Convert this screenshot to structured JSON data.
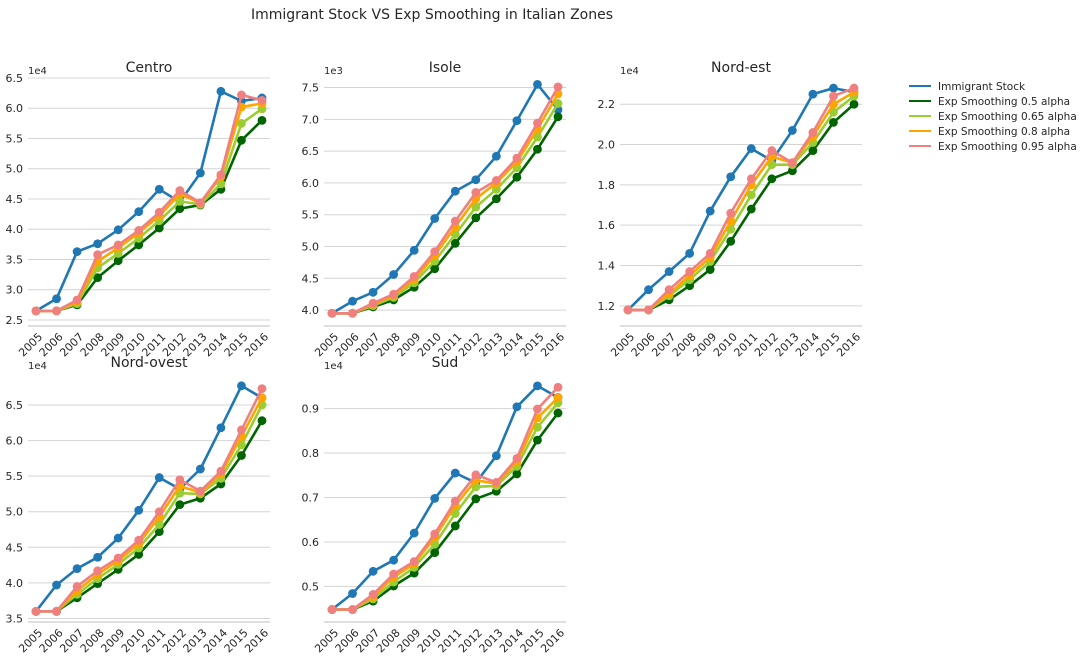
{
  "chart_data": {
    "type": "line",
    "title": "Immigrant Stock VS Exp Smoothing in Italian Zones",
    "categories": [
      "2005",
      "2006",
      "2007",
      "2008",
      "2009",
      "2010",
      "2011",
      "2012",
      "2013",
      "2014",
      "2015",
      "2016"
    ],
    "legend": {
      "placement": "right",
      "entries": [
        {
          "name": "Immigrant Stock",
          "color": "#1f77b4"
        },
        {
          "name": "Exp Smoothing 0.5 alpha",
          "color": "#006400"
        },
        {
          "name": "Exp Smoothing 0.65 alpha",
          "color": "#9acd32"
        },
        {
          "name": "Exp Smoothing 0.8 alpha",
          "color": "#ffa500"
        },
        {
          "name": "Exp Smoothing 0.95 alpha",
          "color": "#f08080"
        }
      ]
    },
    "grid": "horizontal",
    "panels": [
      {
        "title": "Centro",
        "multiplier": "1e4",
        "ylim": [
          2.4,
          6.5
        ],
        "yticks": [
          "2.5",
          "3.0",
          "3.5",
          "4.0",
          "4.5",
          "5.0",
          "5.5",
          "6.0",
          "6.5"
        ],
        "series": [
          {
            "name": "Immigrant Stock",
            "values": [
              2.65,
              2.85,
              3.63,
              3.76,
              3.99,
              4.29,
              4.66,
              4.45,
              4.93,
              6.28,
              6.12,
              6.17
            ]
          },
          {
            "name": "Exp Smoothing 0.5 alpha",
            "values": [
              2.65,
              2.65,
              2.75,
              3.2,
              3.48,
              3.74,
              4.02,
              4.34,
              4.4,
              4.66,
              5.47,
              5.8
            ]
          },
          {
            "name": "Exp Smoothing 0.65 alpha",
            "values": [
              2.65,
              2.65,
              2.77,
              3.36,
              3.6,
              3.85,
              4.14,
              4.46,
              4.41,
              4.75,
              5.75,
              5.99
            ]
          },
          {
            "name": "Exp Smoothing 0.8 alpha",
            "values": [
              2.65,
              2.65,
              2.8,
              3.47,
              3.69,
              3.94,
              4.22,
              4.58,
              4.43,
              4.87,
              6.02,
              6.08
            ]
          },
          {
            "name": "Exp Smoothing 0.95 alpha",
            "values": [
              2.65,
              2.65,
              2.83,
              3.58,
              3.74,
              3.98,
              4.28,
              4.64,
              4.44,
              4.9,
              6.22,
              6.13
            ]
          }
        ]
      },
      {
        "title": "Isole",
        "multiplier": "1e3",
        "ylim": [
          3.75,
          7.65
        ],
        "yticks": [
          "4.0",
          "4.5",
          "5.0",
          "5.5",
          "6.0",
          "6.5",
          "7.0",
          "7.5"
        ],
        "series": [
          {
            "name": "Immigrant Stock",
            "values": [
              3.95,
              4.14,
              4.28,
              4.56,
              4.94,
              5.44,
              5.87,
              6.05,
              6.42,
              6.98,
              7.55,
              7.15
            ]
          },
          {
            "name": "Exp Smoothing 0.5 alpha",
            "values": [
              3.95,
              3.95,
              4.05,
              4.16,
              4.36,
              4.65,
              5.05,
              5.45,
              5.75,
              6.09,
              6.53,
              7.04
            ]
          },
          {
            "name": "Exp Smoothing 0.65 alpha",
            "values": [
              3.95,
              3.95,
              4.07,
              4.2,
              4.43,
              4.77,
              5.19,
              5.62,
              5.9,
              6.24,
              6.72,
              7.25
            ]
          },
          {
            "name": "Exp Smoothing 0.8 alpha",
            "values": [
              3.95,
              3.95,
              4.09,
              4.23,
              4.48,
              4.86,
              5.31,
              5.75,
              6.0,
              6.33,
              6.85,
              7.4
            ]
          },
          {
            "name": "Exp Smoothing 0.95 alpha",
            "values": [
              3.95,
              3.95,
              4.11,
              4.25,
              4.53,
              4.92,
              5.4,
              5.85,
              6.04,
              6.39,
              6.94,
              7.51
            ]
          }
        ]
      },
      {
        "title": "Nord-est",
        "multiplier": "1e4",
        "ylim": [
          1.1,
          2.33
        ],
        "yticks": [
          "1.2",
          "1.4",
          "1.6",
          "1.8",
          "2.0",
          "2.2"
        ],
        "series": [
          {
            "name": "Immigrant Stock",
            "values": [
              1.18,
              1.28,
              1.37,
              1.46,
              1.67,
              1.84,
              1.98,
              1.92,
              2.07,
              2.25,
              2.28,
              2.26
            ]
          },
          {
            "name": "Exp Smoothing 0.5 alpha",
            "values": [
              1.18,
              1.18,
              1.23,
              1.3,
              1.38,
              1.52,
              1.68,
              1.83,
              1.87,
              1.97,
              2.11,
              2.2
            ]
          },
          {
            "name": "Exp Smoothing 0.65 alpha",
            "values": [
              1.18,
              1.18,
              1.25,
              1.33,
              1.42,
              1.58,
              1.75,
              1.9,
              1.9,
              2.01,
              2.16,
              2.24
            ]
          },
          {
            "name": "Exp Smoothing 0.8 alpha",
            "values": [
              1.18,
              1.18,
              1.26,
              1.35,
              1.44,
              1.62,
              1.8,
              1.94,
              1.91,
              2.04,
              2.2,
              2.26
            ]
          },
          {
            "name": "Exp Smoothing 0.95 alpha",
            "values": [
              1.18,
              1.18,
              1.28,
              1.37,
              1.46,
              1.66,
              1.83,
              1.97,
              1.91,
              2.06,
              2.24,
              2.28
            ]
          }
        ]
      },
      {
        "title": "Nord-ovest",
        "multiplier": "1e4",
        "ylim": [
          3.45,
          6.95
        ],
        "yticks": [
          "3.5",
          "4.0",
          "4.5",
          "5.0",
          "5.5",
          "6.0",
          "6.5"
        ],
        "series": [
          {
            "name": "Immigrant Stock",
            "values": [
              3.6,
              3.97,
              4.2,
              4.36,
              4.63,
              5.02,
              5.48,
              5.32,
              5.6,
              6.18,
              6.77,
              6.6
            ]
          },
          {
            "name": "Exp Smoothing 0.5 alpha",
            "values": [
              3.6,
              3.6,
              3.79,
              3.99,
              4.19,
              4.4,
              4.72,
              5.1,
              5.19,
              5.39,
              5.79,
              6.28
            ]
          },
          {
            "name": "Exp Smoothing 0.65 alpha",
            "values": [
              3.6,
              3.6,
              3.84,
              4.06,
              4.26,
              4.49,
              4.82,
              5.26,
              5.25,
              5.47,
              5.94,
              6.5
            ]
          },
          {
            "name": "Exp Smoothing 0.8 alpha",
            "values": [
              3.6,
              3.6,
              3.89,
              4.12,
              4.31,
              4.55,
              4.93,
              5.36,
              5.27,
              5.53,
              6.06,
              6.6
            ]
          },
          {
            "name": "Exp Smoothing 0.95 alpha",
            "values": [
              3.6,
              3.6,
              3.95,
              4.17,
              4.35,
              4.6,
              5.0,
              5.45,
              5.29,
              5.57,
              6.15,
              6.73
            ]
          }
        ]
      },
      {
        "title": "Sud",
        "multiplier": "1e4",
        "ylim": [
          0.42,
          0.98
        ],
        "yticks": [
          "0.5",
          "0.6",
          "0.7",
          "0.8",
          "0.9"
        ],
        "series": [
          {
            "name": "Immigrant Stock",
            "values": [
              0.448,
              0.484,
              0.534,
              0.559,
              0.62,
              0.698,
              0.755,
              0.733,
              0.794,
              0.904,
              0.951,
              0.925
            ]
          },
          {
            "name": "Exp Smoothing 0.5 alpha",
            "values": [
              0.448,
              0.448,
              0.467,
              0.501,
              0.53,
              0.576,
              0.636,
              0.697,
              0.714,
              0.753,
              0.829,
              0.89
            ]
          },
          {
            "name": "Exp Smoothing 0.65 alpha",
            "values": [
              0.448,
              0.448,
              0.472,
              0.51,
              0.543,
              0.595,
              0.664,
              0.724,
              0.726,
              0.77,
              0.858,
              0.913
            ]
          },
          {
            "name": "Exp Smoothing 0.8 alpha",
            "values": [
              0.448,
              0.448,
              0.477,
              0.521,
              0.551,
              0.61,
              0.682,
              0.739,
              0.731,
              0.78,
              0.879,
              0.925
            ]
          },
          {
            "name": "Exp Smoothing 0.95 alpha",
            "values": [
              0.448,
              0.448,
              0.482,
              0.528,
              0.556,
              0.618,
              0.692,
              0.751,
              0.734,
              0.788,
              0.899,
              0.948
            ]
          }
        ]
      }
    ]
  }
}
